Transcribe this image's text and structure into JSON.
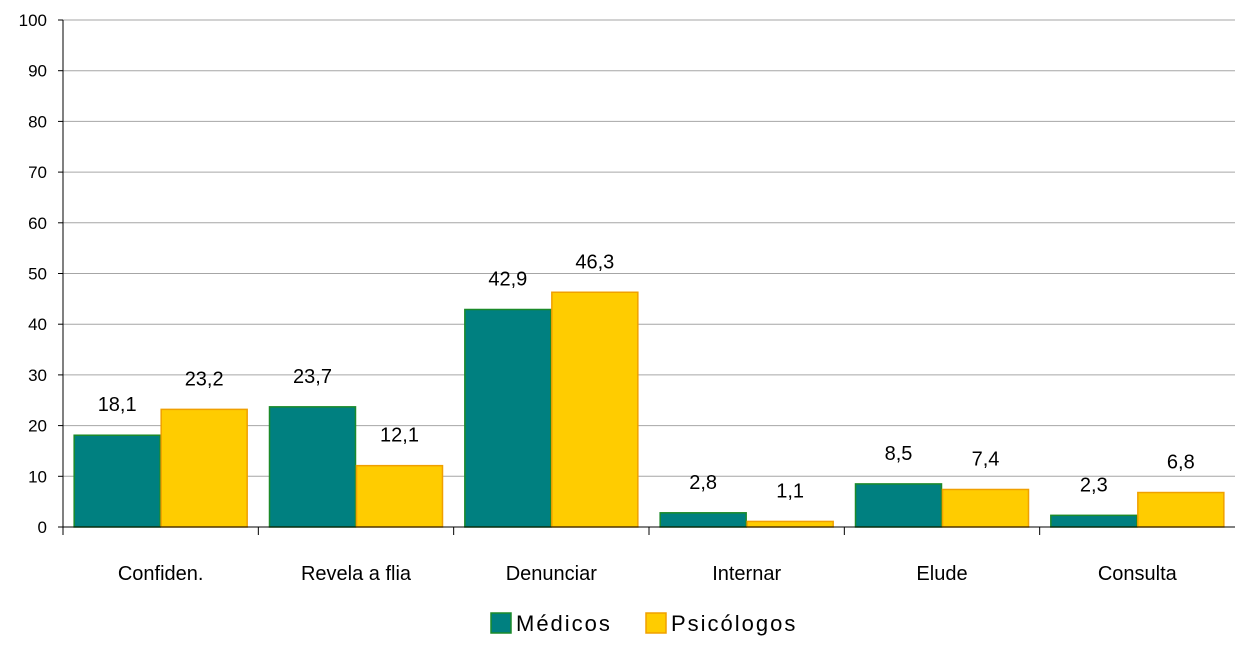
{
  "chart_data": {
    "type": "bar",
    "categories": [
      "Confiden.",
      "Revela a flia",
      "Denunciar",
      "Internar",
      "Elude",
      "Consulta"
    ],
    "series": [
      {
        "name": "Médicos",
        "values": [
          18.1,
          23.7,
          42.9,
          2.8,
          8.5,
          2.3
        ],
        "labels": [
          "18,1",
          "23,7",
          "42,9",
          "2,8",
          "8,5",
          "2,3"
        ],
        "color": "#008080",
        "stroke": "#1a8a2a"
      },
      {
        "name": "Psicólogos",
        "values": [
          23.2,
          12.1,
          46.3,
          1.1,
          7.4,
          6.8
        ],
        "labels": [
          "23,2",
          "12,1",
          "46,3",
          "1,1",
          "7,4",
          "6,8"
        ],
        "color": "#ffcc00",
        "stroke": "#f0a000"
      }
    ],
    "ylim": [
      0,
      100
    ],
    "yticks": [
      0,
      10,
      20,
      30,
      40,
      50,
      60,
      70,
      80,
      90,
      100
    ],
    "grid": true,
    "legend": "bottom-center"
  }
}
